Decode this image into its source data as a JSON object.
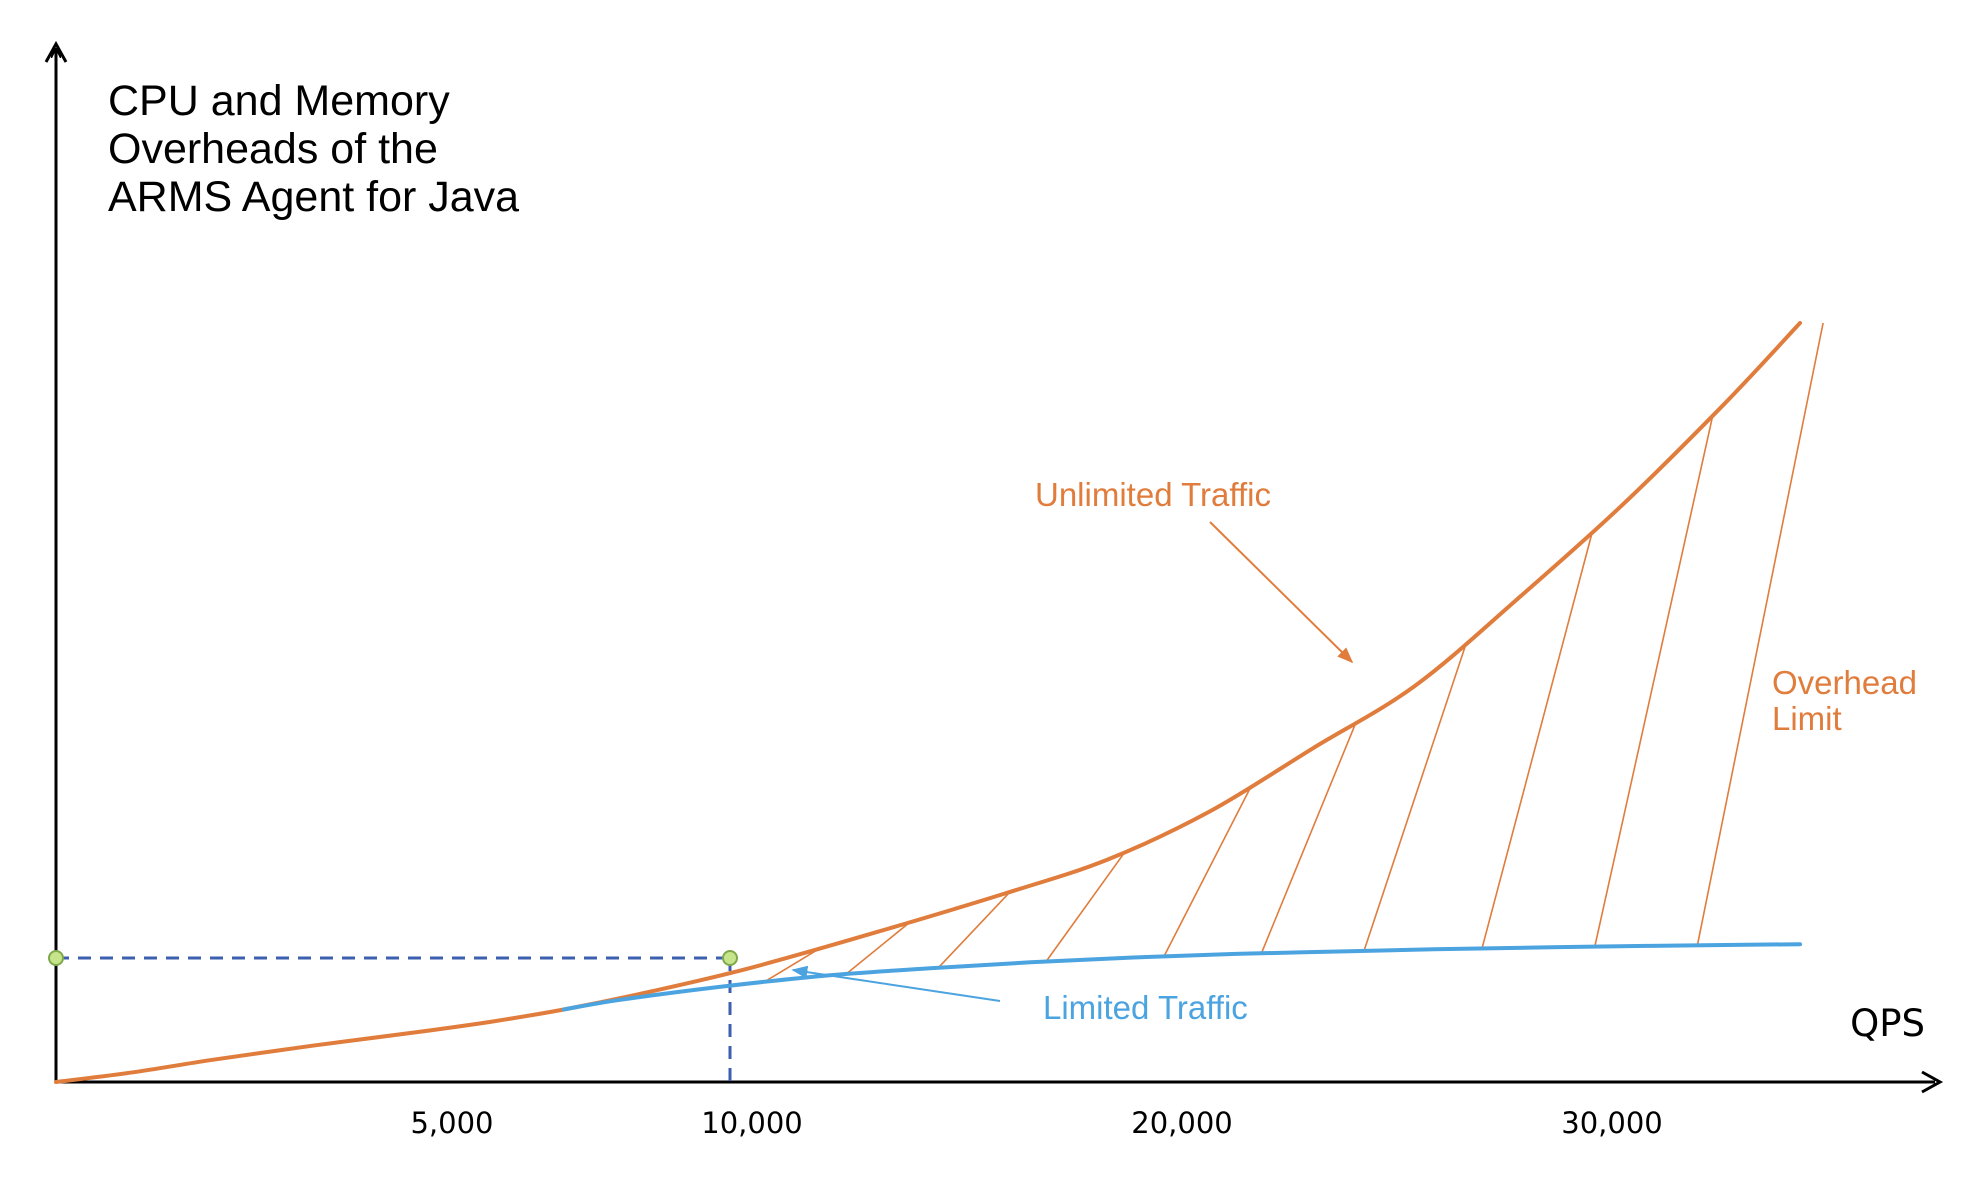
{
  "chart_data": {
    "type": "line",
    "title_lines": [
      "CPU and Memory",
      "Overheads of the",
      "ARMS Agent for Java"
    ],
    "xlabel": "QPS",
    "ylabel": "",
    "x_ticks": [
      {
        "label": "5,000"
      },
      {
        "label": "10,000"
      },
      {
        "label": "20,000"
      },
      {
        "label": "30,000"
      }
    ],
    "series": [
      {
        "name": "Unlimited Traffic",
        "color": "#E07C3C",
        "points": [
          [
            0,
            0
          ],
          [
            1500,
            0.4
          ],
          [
            3000,
            0.9
          ],
          [
            5000,
            1.5
          ],
          [
            7000,
            2.05
          ],
          [
            8500,
            2.5
          ],
          [
            9900,
            3.0
          ],
          [
            11500,
            3.7
          ],
          [
            13500,
            4.7
          ],
          [
            16000,
            6.2
          ],
          [
            18500,
            7.8
          ],
          [
            20500,
            9.2
          ],
          [
            22500,
            11.2
          ],
          [
            24500,
            13.8
          ],
          [
            26500,
            16.4
          ],
          [
            28500,
            20.0
          ],
          [
            30500,
            23.8
          ],
          [
            32500,
            28.0
          ],
          [
            34000,
            31.4
          ]
        ]
      },
      {
        "name": "Limited Traffic",
        "color": "#4BA3E0",
        "points": [
          [
            9900,
            3.0
          ],
          [
            11000,
            3.4
          ],
          [
            13000,
            3.95
          ],
          [
            15000,
            4.4
          ],
          [
            17000,
            4.7
          ],
          [
            19000,
            4.95
          ],
          [
            21000,
            5.15
          ],
          [
            23000,
            5.3
          ],
          [
            25000,
            5.4
          ],
          [
            27000,
            5.5
          ],
          [
            29000,
            5.57
          ],
          [
            31000,
            5.63
          ],
          [
            34000,
            5.7
          ]
        ]
      }
    ],
    "marker": {
      "x": 9900,
      "y": 3.0
    },
    "annotations": {
      "unlimited": "Unlimited Traffic",
      "limited": "Limited Traffic",
      "overhead_line1": "Overhead",
      "overhead_line2": "Limit"
    },
    "shaded_region": {
      "label": "Overhead Limit",
      "x_from": 13500,
      "x_to": 33500
    },
    "grid": false,
    "legend": "none",
    "colors": {
      "unlimited": "#E07C3C",
      "limited": "#4BA3E0",
      "guide": "#3D5FAF",
      "marker_fill": "#C6E48B",
      "marker_stroke": "#7FA84A",
      "axis": "#000000"
    }
  }
}
